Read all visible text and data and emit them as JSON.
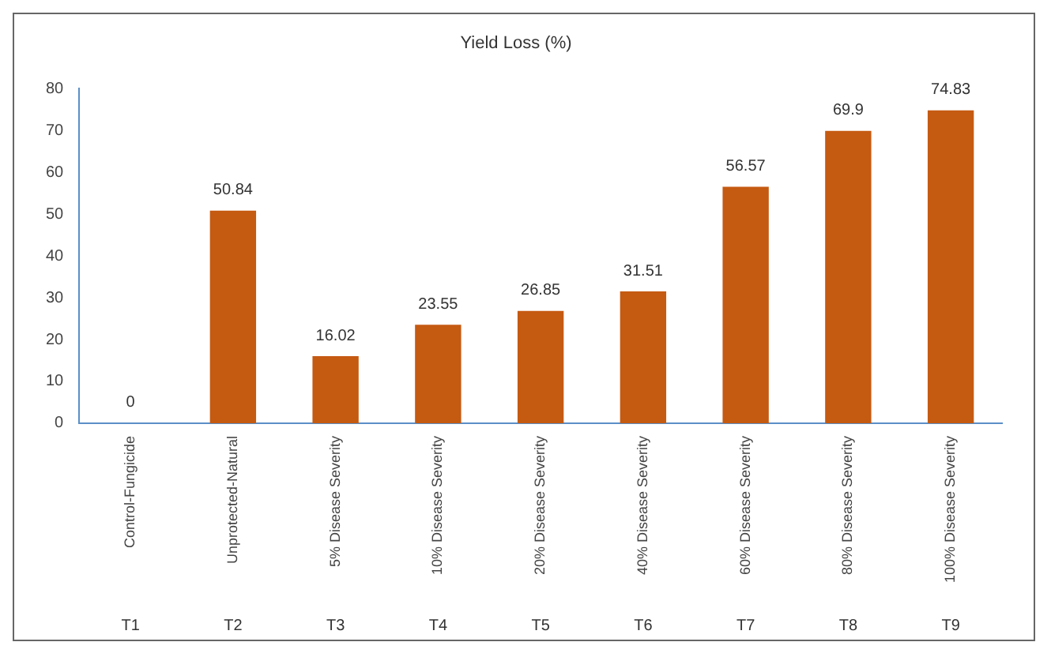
{
  "chart_data": {
    "type": "bar",
    "title": "Yield Loss (%)",
    "categories": [
      "Control-Fungicide",
      "Unprotected-Natural",
      "5% Disease Severity",
      "10% Disease Severity",
      "20% Disease Severity",
      "40% Disease Severity",
      "60% Disease Severity",
      "80% Disease Severity",
      "100% Disease Severity"
    ],
    "values": [
      0,
      50.84,
      16.02,
      23.55,
      26.85,
      31.51,
      56.57,
      69.9,
      74.83
    ],
    "color": "#c55a11",
    "ylim": [
      0,
      80
    ],
    "yticks": [
      0,
      10,
      20,
      30,
      40,
      50,
      60,
      70,
      80
    ],
    "grid": false,
    "data_labels": true,
    "annotations": [
      "T1",
      "T2",
      "T3",
      "T4",
      "T5",
      "T6",
      "T7",
      "T8",
      "T9"
    ]
  }
}
